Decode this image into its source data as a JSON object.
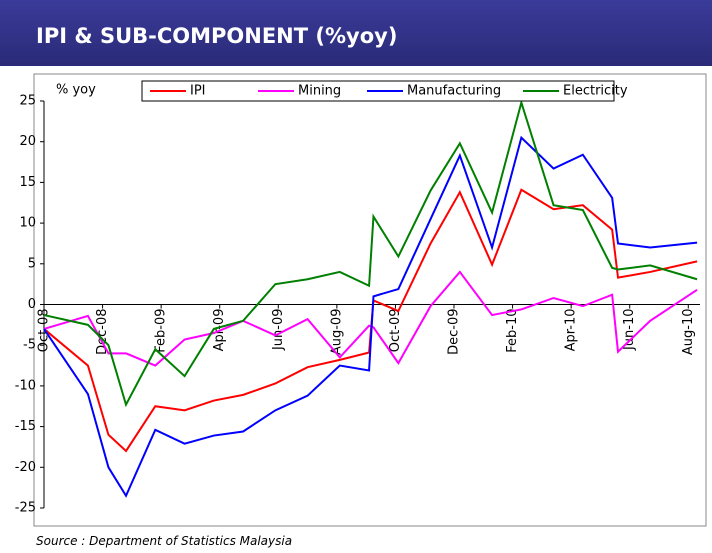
{
  "header": {
    "title": "IPI & SUB-COMPONENT (%yoy)"
  },
  "chart_data": {
    "type": "line",
    "ylabel": "% yoy",
    "x": [
      0,
      1.5,
      2.2,
      2.8,
      3.8,
      4.8,
      5.8,
      6.8,
      7.9,
      9,
      10.1,
      11.1,
      11.25,
      12.1,
      13.2,
      14.2,
      15.3,
      16.3,
      17.4,
      18.4,
      19.4,
      19.6,
      20.7,
      22.3
    ],
    "series": [
      {
        "name": "IPI",
        "color": "#ff0000",
        "values": [
          -3,
          -7.5,
          -16,
          -18,
          -12.5,
          -13,
          -11.8,
          -11.1,
          -9.7,
          -7.7,
          -6.8,
          -5.9,
          0.5,
          -0.8,
          7.5,
          13.8,
          4.9,
          14.1,
          11.7,
          12.2,
          9.2,
          3.3,
          4.0,
          5.3
        ]
      },
      {
        "name": "Mining",
        "color": "#ff00ff",
        "values": [
          -3,
          -1.4,
          -6,
          -6,
          -7.5,
          -4.3,
          -3.5,
          -2,
          -3.8,
          -1.8,
          -6.5,
          -2.6,
          -2.8,
          -7.2,
          -0.2,
          4.0,
          -1.3,
          -0.6,
          0.8,
          -0.2,
          1.2,
          -5.8,
          -2.0,
          1.8
        ]
      },
      {
        "name": "Manufacturing",
        "color": "#0000ff",
        "values": [
          -3,
          -11,
          -20,
          -23.5,
          -15.4,
          -17.1,
          -16.1,
          -15.6,
          -13,
          -11.2,
          -7.5,
          -8.1,
          1,
          1.9,
          10.5,
          18.3,
          7,
          20.5,
          16.7,
          18.4,
          13.1,
          7.5,
          7,
          7.6
        ]
      },
      {
        "name": "Electricity",
        "color": "#008000",
        "values": [
          -1.3,
          -2.5,
          -5,
          -12.3,
          -5.5,
          -8.8,
          -3,
          -2,
          2.5,
          3.1,
          4,
          2.3,
          10.8,
          5.9,
          14,
          19.8,
          11.3,
          24.8,
          12.2,
          11.6,
          4.5,
          4.3,
          4.8,
          3.1
        ]
      }
    ],
    "xlim": [
      0,
      22.4
    ],
    "xticks": [
      {
        "value": 0,
        "label": "Oct-08"
      },
      {
        "value": 2,
        "label": "Dec-08"
      },
      {
        "value": 4,
        "label": "Feb-09"
      },
      {
        "value": 6,
        "label": "Apr-09"
      },
      {
        "value": 8,
        "label": "Jun-09"
      },
      {
        "value": 10,
        "label": "Aug-09"
      },
      {
        "value": 12,
        "label": "Oct-09"
      },
      {
        "value": 14,
        "label": "Dec-09"
      },
      {
        "value": 16,
        "label": "Feb-10"
      },
      {
        "value": 18,
        "label": "Apr-10"
      },
      {
        "value": 20,
        "label": "Jun-10"
      },
      {
        "value": 22,
        "label": "Aug-10"
      }
    ],
    "ylim": [
      -25,
      25
    ],
    "yticks": [
      -25,
      -20,
      -15,
      -10,
      -5,
      0,
      5,
      10,
      15,
      20,
      25
    ],
    "legend": "top"
  },
  "footer": {
    "source": "Source : Department of Statistics Malaysia"
  }
}
